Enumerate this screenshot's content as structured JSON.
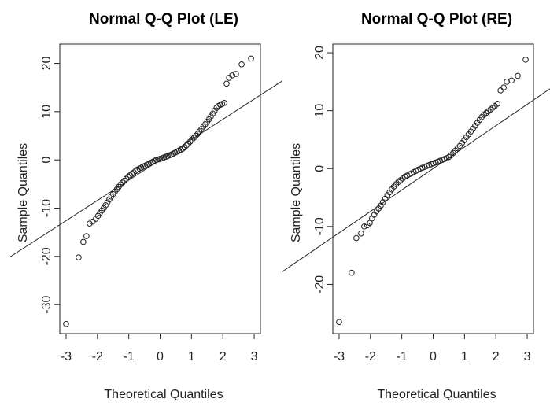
{
  "chart_data": [
    {
      "type": "scatter",
      "title": "Normal Q-Q Plot (LE)",
      "xlabel": "Theoretical Quantiles",
      "ylabel": "Sample Quantiles",
      "xlim": [
        -3.2,
        3.2
      ],
      "ylim": [
        -36,
        24
      ],
      "xticks": [
        -3,
        -2,
        -1,
        0,
        1,
        2,
        3
      ],
      "yticks": [
        -30,
        -20,
        -10,
        0,
        10,
        20
      ],
      "grid": false,
      "reference_line": {
        "intercept": 0,
        "slope": 4.2
      },
      "x": [
        -3.0,
        -2.6,
        -2.45,
        -2.35,
        -2.25,
        -2.15,
        -2.05,
        -1.98,
        -1.92,
        -1.86,
        -1.8,
        -1.74,
        -1.68,
        -1.62,
        -1.56,
        -1.5,
        -1.44,
        -1.38,
        -1.32,
        -1.26,
        -1.2,
        -1.14,
        -1.08,
        -1.02,
        -0.96,
        -0.9,
        -0.84,
        -0.78,
        -0.72,
        -0.66,
        -0.6,
        -0.54,
        -0.48,
        -0.42,
        -0.36,
        -0.3,
        -0.24,
        -0.18,
        -0.12,
        -0.06,
        0.0,
        0.06,
        0.12,
        0.18,
        0.24,
        0.3,
        0.36,
        0.42,
        0.48,
        0.54,
        0.6,
        0.66,
        0.72,
        0.78,
        0.84,
        0.9,
        0.96,
        1.02,
        1.08,
        1.14,
        1.2,
        1.26,
        1.32,
        1.38,
        1.44,
        1.5,
        1.56,
        1.62,
        1.68,
        1.74,
        1.8,
        1.86,
        1.92,
        1.98,
        2.05,
        2.12,
        2.2,
        2.3,
        2.42,
        2.6,
        2.9
      ],
      "y": [
        -34.0,
        -20.2,
        -17.0,
        -15.8,
        -13.2,
        -12.8,
        -12.2,
        -11.6,
        -11.0,
        -10.5,
        -10.0,
        -9.4,
        -8.8,
        -8.2,
        -7.6,
        -7.1,
        -6.6,
        -6.1,
        -5.6,
        -5.1,
        -4.7,
        -4.3,
        -3.9,
        -3.5,
        -3.2,
        -2.9,
        -2.6,
        -2.3,
        -2.0,
        -1.8,
        -1.6,
        -1.4,
        -1.2,
        -1.0,
        -0.8,
        -0.6,
        -0.4,
        -0.2,
        0.0,
        0.1,
        0.2,
        0.35,
        0.5,
        0.65,
        0.8,
        0.95,
        1.1,
        1.3,
        1.5,
        1.7,
        1.9,
        2.1,
        2.3,
        2.6,
        3.0,
        3.4,
        3.8,
        4.2,
        4.6,
        5.0,
        5.4,
        5.9,
        6.4,
        6.9,
        7.4,
        7.9,
        8.4,
        9.0,
        9.6,
        10.2,
        10.8,
        11.2,
        11.4,
        11.6,
        11.8,
        15.8,
        17.0,
        17.5,
        17.8,
        19.8,
        21.0
      ]
    },
    {
      "type": "scatter",
      "title": "Normal Q-Q Plot (RE)",
      "xlabel": "Theoretical Quantiles",
      "ylabel": "Sample Quantiles",
      "xlim": [
        -3.2,
        3.2
      ],
      "ylim": [
        -28.5,
        21.5
      ],
      "xticks": [
        -3,
        -2,
        -1,
        0,
        1,
        2,
        3
      ],
      "yticks": [
        -20,
        -10,
        0,
        10,
        20
      ],
      "grid": false,
      "reference_line": {
        "intercept": 0,
        "slope": 3.7
      },
      "x": [
        -3.0,
        -2.6,
        -2.45,
        -2.3,
        -2.2,
        -2.1,
        -2.02,
        -1.95,
        -1.88,
        -1.81,
        -1.74,
        -1.67,
        -1.6,
        -1.53,
        -1.46,
        -1.39,
        -1.32,
        -1.25,
        -1.18,
        -1.11,
        -1.04,
        -0.97,
        -0.9,
        -0.83,
        -0.76,
        -0.69,
        -0.62,
        -0.55,
        -0.48,
        -0.41,
        -0.34,
        -0.27,
        -0.2,
        -0.13,
        -0.06,
        0.01,
        0.08,
        0.15,
        0.22,
        0.29,
        0.36,
        0.43,
        0.5,
        0.57,
        0.64,
        0.71,
        0.78,
        0.85,
        0.92,
        0.99,
        1.06,
        1.13,
        1.2,
        1.27,
        1.34,
        1.41,
        1.48,
        1.55,
        1.62,
        1.69,
        1.76,
        1.83,
        1.9,
        1.97,
        2.05,
        2.15,
        2.25,
        2.35,
        2.5,
        2.7,
        2.95
      ],
      "y": [
        -26.5,
        -18.0,
        -12.0,
        -11.2,
        -10.0,
        -9.8,
        -9.4,
        -8.6,
        -8.0,
        -7.4,
        -6.9,
        -6.4,
        -5.8,
        -5.2,
        -4.6,
        -4.1,
        -3.6,
        -3.1,
        -2.7,
        -2.3,
        -2.0,
        -1.7,
        -1.4,
        -1.2,
        -1.0,
        -0.8,
        -0.6,
        -0.4,
        -0.2,
        0.0,
        0.15,
        0.3,
        0.45,
        0.6,
        0.75,
        0.9,
        1.05,
        1.2,
        1.35,
        1.5,
        1.65,
        1.8,
        2.0,
        2.3,
        2.7,
        3.1,
        3.5,
        3.9,
        4.4,
        4.9,
        5.4,
        5.9,
        6.4,
        6.9,
        7.4,
        7.9,
        8.4,
        8.9,
        9.3,
        9.6,
        9.9,
        10.2,
        10.5,
        10.8,
        11.2,
        13.5,
        14.0,
        15.0,
        15.2,
        16.0,
        18.8
      ]
    }
  ]
}
